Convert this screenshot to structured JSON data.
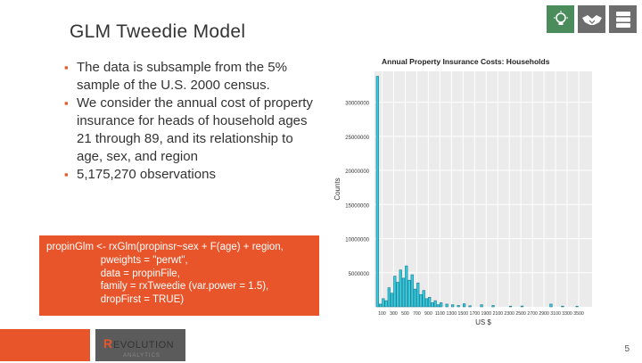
{
  "slide": {
    "title": "GLM Tweedie Model",
    "page_number": "5"
  },
  "bullets": [
    "The data is subsample from the 5% sample of the U.S. 2000 census.",
    "We consider the annual cost of property insurance for heads of household ages 21 through 89, and its relationship to age, sex, and region",
    "5,175,270 observations"
  ],
  "code": [
    "propinGlm <- rxGlm(propinsr~sex + F(age) + region,",
    "                   pweights = \"perwt\",",
    "                   data = propinFile,",
    "                   family = rxTweedie (var.power = 1.5),",
    "                   dropFirst = TRUE)"
  ],
  "logo": {
    "text": "REVOLUTION",
    "sub": "ANALYTICS"
  },
  "icons": [
    "lightbulb-icon",
    "handshake-icon",
    "server-icon"
  ],
  "colors": {
    "accent": "#e8552a",
    "icon_green": "#4a8c5c",
    "icon_gray": "#6d6d6d",
    "bar_fill": "#33cce0"
  },
  "chart_data": {
    "type": "bar",
    "title": "Annual Property Insurance Costs: Households",
    "xlabel": "US $",
    "ylabel": "Counts",
    "ylim": [
      0,
      34000000
    ],
    "yticks": [
      5000000,
      10000000,
      15000000,
      20000000,
      25000000,
      30000000
    ],
    "ytick_labels": [
      "5000000",
      "10000000",
      "15000000",
      "20000000",
      "25000000",
      "30000000"
    ],
    "xlim": [
      0,
      3700
    ],
    "xticks": [
      100,
      300,
      500,
      700,
      900,
      1100,
      1300,
      1500,
      1700,
      1900,
      2100,
      2300,
      2500,
      2700,
      2900,
      3100,
      3300,
      3500
    ],
    "xtick_labels": [
      "100",
      "300",
      "500",
      "700",
      "900",
      "1100",
      "1300",
      "1500",
      "1700",
      "1900",
      "2100",
      "2300",
      "2500",
      "2700",
      "2900",
      "3100",
      "3300",
      "3500"
    ],
    "bin_width": 50,
    "bins": [
      {
        "x": 0,
        "count": 33800000
      },
      {
        "x": 50,
        "count": 400000
      },
      {
        "x": 100,
        "count": 1200000
      },
      {
        "x": 150,
        "count": 900000
      },
      {
        "x": 200,
        "count": 2800000
      },
      {
        "x": 250,
        "count": 2000000
      },
      {
        "x": 300,
        "count": 4500000
      },
      {
        "x": 350,
        "count": 3600000
      },
      {
        "x": 400,
        "count": 5400000
      },
      {
        "x": 450,
        "count": 4200000
      },
      {
        "x": 500,
        "count": 6000000
      },
      {
        "x": 550,
        "count": 3900000
      },
      {
        "x": 600,
        "count": 4700000
      },
      {
        "x": 650,
        "count": 2600000
      },
      {
        "x": 700,
        "count": 3500000
      },
      {
        "x": 750,
        "count": 1800000
      },
      {
        "x": 800,
        "count": 2400000
      },
      {
        "x": 850,
        "count": 1200000
      },
      {
        "x": 900,
        "count": 1400000
      },
      {
        "x": 950,
        "count": 600000
      },
      {
        "x": 1000,
        "count": 900000
      },
      {
        "x": 1050,
        "count": 300000
      },
      {
        "x": 1100,
        "count": 600000
      },
      {
        "x": 1200,
        "count": 400000
      },
      {
        "x": 1300,
        "count": 300000
      },
      {
        "x": 1400,
        "count": 200000
      },
      {
        "x": 1500,
        "count": 450000
      },
      {
        "x": 1600,
        "count": 150000
      },
      {
        "x": 1800,
        "count": 300000
      },
      {
        "x": 2000,
        "count": 200000
      },
      {
        "x": 2300,
        "count": 100000
      },
      {
        "x": 2500,
        "count": 120000
      },
      {
        "x": 3000,
        "count": 400000
      },
      {
        "x": 3200,
        "count": 100000
      },
      {
        "x": 3450,
        "count": 80000
      }
    ]
  }
}
